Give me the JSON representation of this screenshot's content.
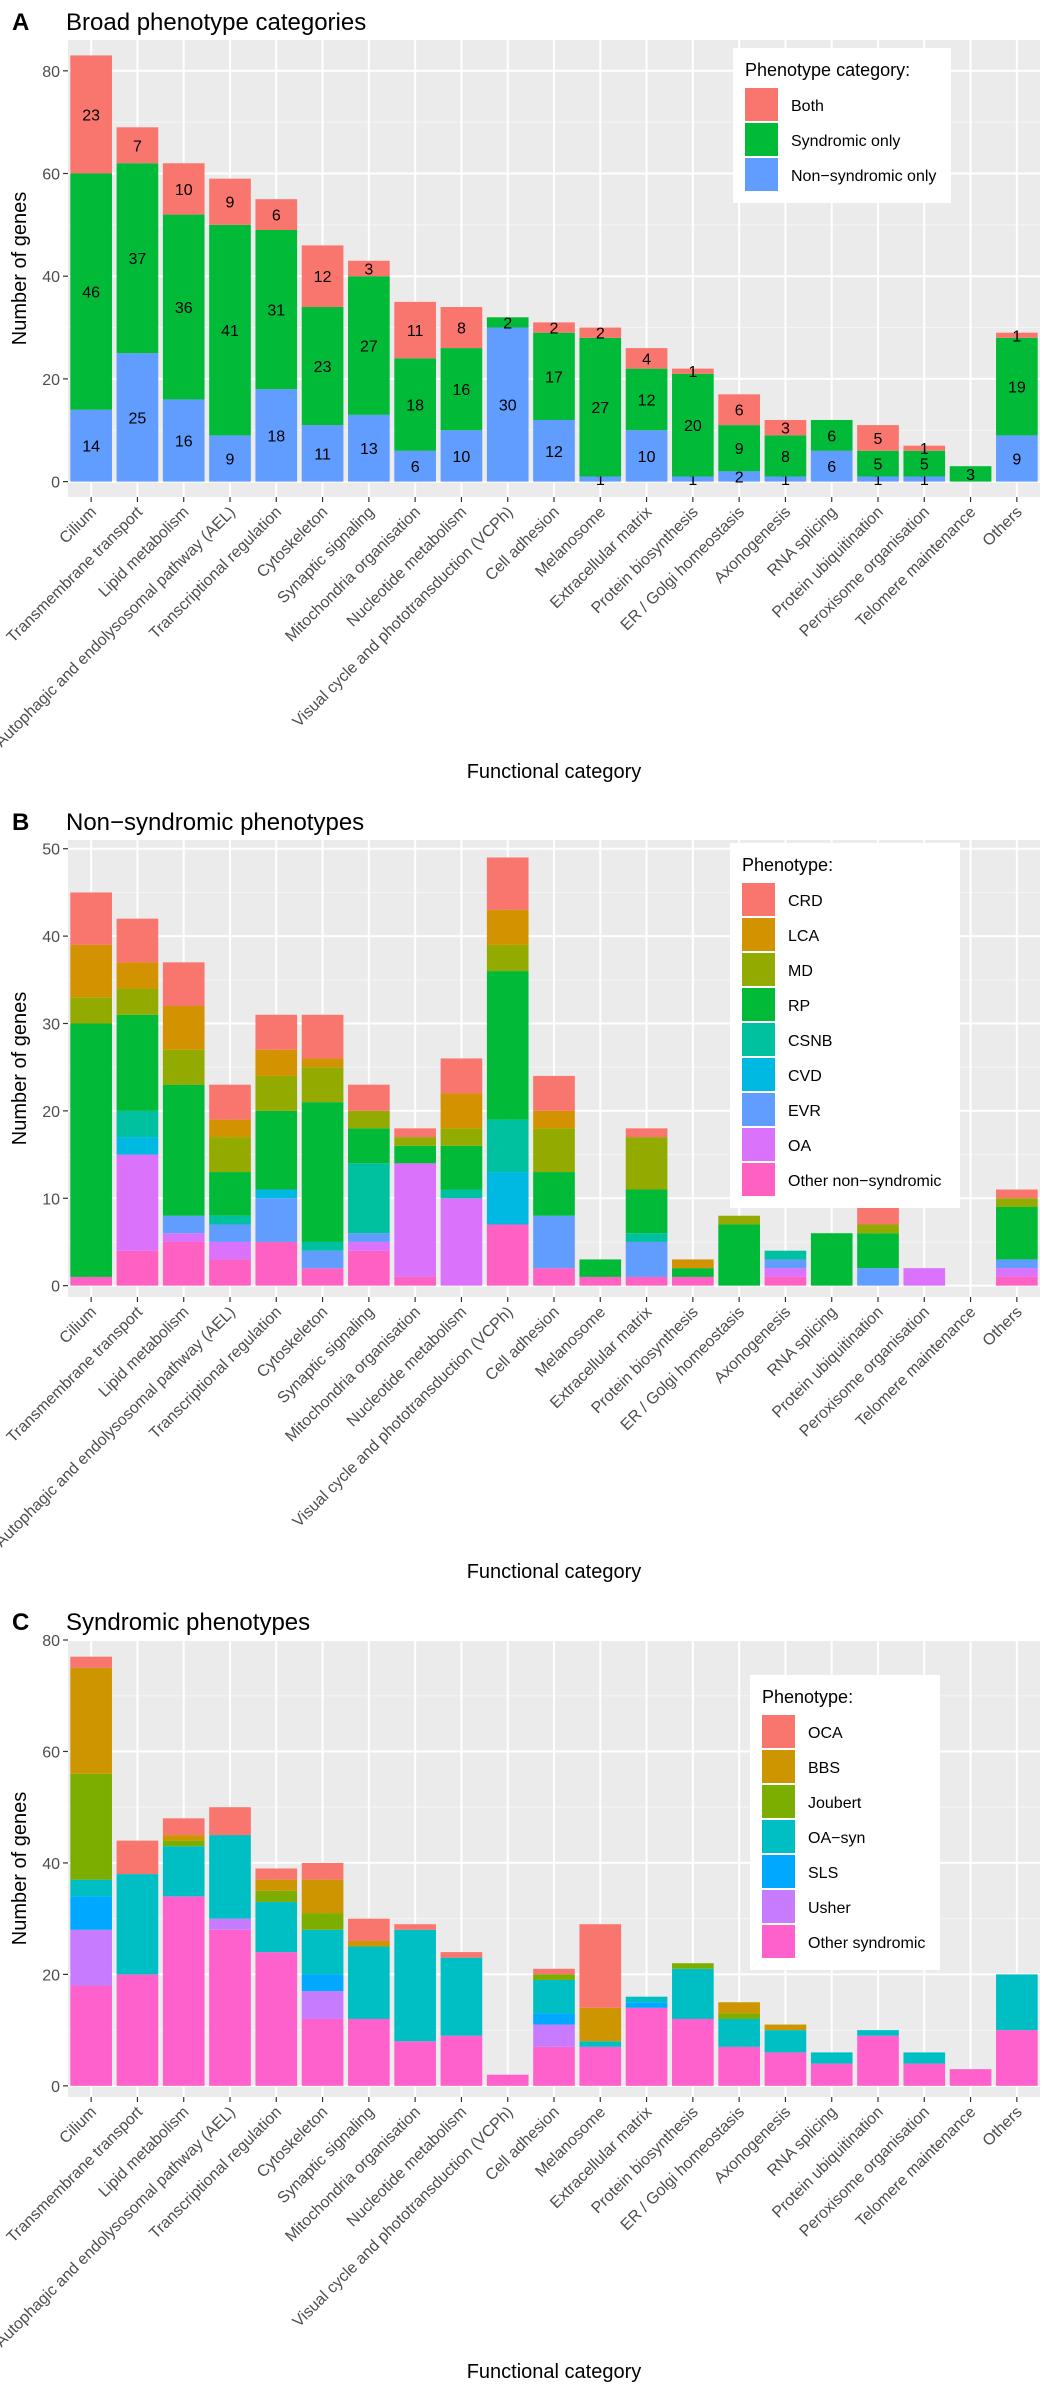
{
  "figure": {
    "categories": [
      "Cilium",
      "Transmembrane transport",
      "Lipid metabolism",
      "Autophagic and endolysosomal pathway (AEL)",
      "Transcriptional regulation",
      "Cytoskeleton",
      "Synaptic signaling",
      "Mitochondria organisation",
      "Nucleotide metabolism",
      "Visual cycle and phototransduction (VCPh)",
      "Cell adhesion",
      "Melanosome",
      "Extracellular matrix",
      "Protein biosynthesis",
      "ER / Golgi homeostasis",
      "Axonogenesis",
      "RNA splicing",
      "Protein ubiquitination",
      "Peroxisome organisation",
      "Telomere maintenance",
      "Others"
    ]
  },
  "chart_data": [
    {
      "type": "bar",
      "stacked": true,
      "panel_letter": "A",
      "title": "Broad phenotype categories",
      "xlabel": "Functional category",
      "ylabel": "Number of genes",
      "ylim": [
        -3,
        86
      ],
      "yticks": [
        0,
        20,
        40,
        60,
        80
      ],
      "legend_title": "Phenotype category:",
      "legend_position": "top-right",
      "series": [
        {
          "name": "Non−syndromic only",
          "color": "#619CFF",
          "values": [
            14,
            25,
            16,
            9,
            18,
            11,
            13,
            6,
            10,
            30,
            12,
            1,
            10,
            1,
            2,
            1,
            6,
            1,
            1,
            0,
            9
          ],
          "labels": [
            "14",
            "25",
            "16",
            "9",
            "18",
            "11",
            "13",
            "6",
            "10",
            "30",
            "12",
            "1",
            "10",
            "1",
            "2",
            "1",
            "6",
            "1",
            "1",
            "",
            "9"
          ]
        },
        {
          "name": "Syndromic only",
          "color": "#00BA38",
          "values": [
            46,
            37,
            36,
            41,
            31,
            23,
            27,
            18,
            16,
            2,
            17,
            27,
            12,
            20,
            9,
            8,
            6,
            5,
            5,
            3,
            19
          ],
          "labels": [
            "46",
            "37",
            "36",
            "41",
            "31",
            "23",
            "27",
            "18",
            "16",
            "2",
            "17",
            "27",
            "12",
            "20",
            "9",
            "8",
            "6",
            "5",
            "5",
            "3",
            "19"
          ]
        },
        {
          "name": "Both",
          "color": "#F8766D",
          "values": [
            23,
            7,
            10,
            9,
            6,
            12,
            3,
            11,
            8,
            0,
            2,
            2,
            4,
            1,
            6,
            3,
            0,
            5,
            1,
            0,
            1
          ],
          "labels": [
            "23",
            "7",
            "10",
            "9",
            "6",
            "12",
            "3",
            "11",
            "8",
            "",
            "2",
            "2",
            "4",
            "1",
            "6",
            "3",
            "",
            "5",
            "1",
            "",
            "1"
          ]
        }
      ]
    },
    {
      "type": "bar",
      "stacked": true,
      "panel_letter": "B",
      "title": "Non−syndromic phenotypes",
      "xlabel": "Functional category",
      "ylabel": "Number of genes",
      "ylim": [
        -1.3,
        51
      ],
      "yticks": [
        0,
        10,
        20,
        30,
        40,
        50
      ],
      "legend_title": "Phenotype:",
      "legend_position": "top-right",
      "series": [
        {
          "name": "Other non−syndromic",
          "color": "#FF61C3",
          "values": [
            1,
            4,
            5,
            3,
            5,
            2,
            4,
            1,
            0,
            7,
            2,
            1,
            1,
            1,
            0,
            1,
            0,
            0,
            0,
            0,
            1
          ]
        },
        {
          "name": "OA",
          "color": "#DB72FB",
          "values": [
            0,
            11,
            1,
            2,
            0,
            0,
            1,
            13,
            10,
            0,
            0,
            0,
            0,
            0,
            0,
            1,
            0,
            0,
            2,
            0,
            1
          ]
        },
        {
          "name": "EVR",
          "color": "#619CFF",
          "values": [
            0,
            0,
            2,
            2,
            5,
            2,
            1,
            0,
            0,
            0,
            6,
            0,
            4,
            0,
            0,
            1,
            0,
            2,
            0,
            0,
            1
          ]
        },
        {
          "name": "CVD",
          "color": "#00B9E3",
          "values": [
            0,
            2,
            0,
            0,
            1,
            0,
            0,
            0,
            0,
            6,
            0,
            0,
            0,
            0,
            0,
            0,
            0,
            0,
            0,
            0,
            0
          ]
        },
        {
          "name": "CSNB",
          "color": "#00C19F",
          "values": [
            0,
            3,
            0,
            1,
            0,
            1,
            8,
            0,
            1,
            6,
            0,
            0,
            1,
            0,
            0,
            1,
            0,
            0,
            0,
            0,
            0
          ]
        },
        {
          "name": "RP",
          "color": "#00BA38",
          "values": [
            29,
            11,
            15,
            5,
            9,
            16,
            4,
            2,
            5,
            17,
            5,
            2,
            5,
            1,
            7,
            0,
            6,
            4,
            0,
            0,
            6
          ]
        },
        {
          "name": "MD",
          "color": "#93AA00",
          "values": [
            3,
            3,
            4,
            4,
            4,
            4,
            2,
            1,
            2,
            3,
            5,
            0,
            6,
            0,
            1,
            0,
            0,
            1,
            0,
            0,
            1
          ]
        },
        {
          "name": "LCA",
          "color": "#D39200",
          "values": [
            6,
            3,
            5,
            2,
            3,
            1,
            0,
            0,
            4,
            4,
            2,
            0,
            0,
            1,
            0,
            0,
            0,
            0,
            0,
            0,
            0
          ]
        },
        {
          "name": "CRD",
          "color": "#F8766D",
          "values": [
            6,
            5,
            5,
            4,
            4,
            5,
            3,
            1,
            4,
            6,
            4,
            0,
            1,
            0,
            0,
            0,
            0,
            2,
            0,
            0,
            1
          ]
        }
      ],
      "legend_order": [
        "CRD",
        "LCA",
        "MD",
        "RP",
        "CSNB",
        "CVD",
        "EVR",
        "OA",
        "Other non−syndromic"
      ]
    },
    {
      "type": "bar",
      "stacked": true,
      "panel_letter": "C",
      "title": "Syndromic phenotypes",
      "xlabel": "Functional category",
      "ylabel": "Number of genes",
      "ylim": [
        -2,
        80
      ],
      "yticks": [
        0,
        20,
        40,
        60,
        80
      ],
      "legend_title": "Phenotype:",
      "legend_position": "top-right",
      "series": [
        {
          "name": "Other syndromic",
          "color": "#FF61CC",
          "values": [
            18,
            20,
            34,
            28,
            24,
            12,
            12,
            8,
            9,
            2,
            7,
            7,
            14,
            12,
            7,
            6,
            4,
            9,
            4,
            3,
            10
          ]
        },
        {
          "name": "Usher",
          "color": "#C77CFF",
          "values": [
            10,
            0,
            0,
            2,
            0,
            5,
            0,
            0,
            0,
            0,
            4,
            0,
            0,
            0,
            0,
            0,
            0,
            0,
            0,
            0,
            0
          ]
        },
        {
          "name": "SLS",
          "color": "#00A9FF",
          "values": [
            6,
            0,
            0,
            0,
            0,
            3,
            0,
            0,
            0,
            0,
            2,
            0,
            1,
            0,
            0,
            0,
            0,
            0,
            0,
            0,
            0
          ]
        },
        {
          "name": "OA−syn",
          "color": "#00BFC4",
          "values": [
            3,
            18,
            9,
            15,
            9,
            8,
            13,
            20,
            14,
            0,
            6,
            1,
            1,
            9,
            5,
            4,
            2,
            1,
            2,
            0,
            10
          ]
        },
        {
          "name": "Joubert",
          "color": "#7CAE00",
          "values": [
            19,
            0,
            1,
            0,
            2,
            3,
            0,
            0,
            0,
            0,
            1,
            0,
            0,
            1,
            1,
            0,
            0,
            0,
            0,
            0,
            0
          ]
        },
        {
          "name": "BBS",
          "color": "#CD9600",
          "values": [
            19,
            0,
            1,
            0,
            2,
            6,
            1,
            0,
            0,
            0,
            0,
            6,
            0,
            0,
            2,
            1,
            0,
            0,
            0,
            0,
            0
          ]
        },
        {
          "name": "OCA",
          "color": "#F8766D",
          "values": [
            2,
            6,
            3,
            5,
            2,
            3,
            4,
            1,
            1,
            0,
            1,
            15,
            0,
            0,
            0,
            0,
            0,
            0,
            0,
            0,
            0
          ]
        }
      ],
      "legend_order": [
        "OCA",
        "BBS",
        "Joubert",
        "OA−syn",
        "SLS",
        "Usher",
        "Other syndromic"
      ]
    }
  ]
}
